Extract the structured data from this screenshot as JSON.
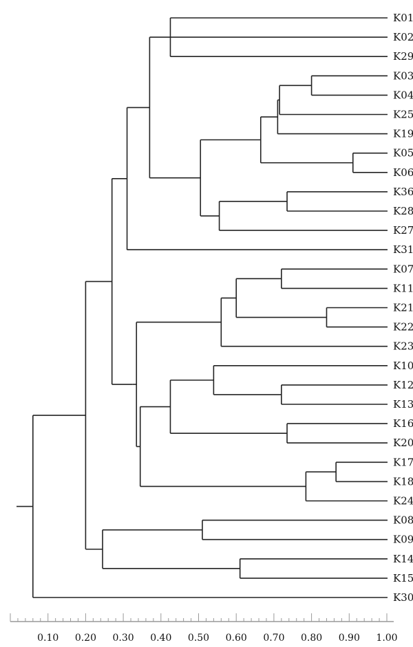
{
  "chart_data": {
    "type": "dendrogram",
    "title": "",
    "xlabel": "",
    "ylabel": "",
    "xlim": [
      0.0,
      1.0
    ],
    "leaves": [
      "K01",
      "K02",
      "K29",
      "K03",
      "K04",
      "K25",
      "K19",
      "K05",
      "K06",
      "K36",
      "K28",
      "K27",
      "K31",
      "K07",
      "K11",
      "K21",
      "K22",
      "K23",
      "K10",
      "K12",
      "K13",
      "K16",
      "K20",
      "K17",
      "K18",
      "K24",
      "K08",
      "K09",
      "K14",
      "K15",
      "K30"
    ],
    "tree": {
      "h": 0.06,
      "c": [
        {
          "h": 0.2,
          "c": [
            {
              "h": 0.27,
              "c": [
                {
                  "h": 0.31,
                  "c": [
                    {
                      "h": 0.37,
                      "c": [
                        {
                          "h": 0.425,
                          "c": [
                            "K01",
                            "K02",
                            "_K29"
                          ]
                        },
                        {
                          "h": 0.505,
                          "c": [
                            {
                              "h": 0.665,
                              "c": [
                                {
                                  "h": 0.71,
                                  "c": [
                                    {
                                      "h": 0.715,
                                      "c": [
                                        {
                                          "h": 0.8,
                                          "c": [
                                            "K03",
                                            "K04"
                                          ]
                                        },
                                        "K25"
                                      ]
                                    },
                                    "K19"
                                  ]
                                },
                                {
                                  "h": 0.91,
                                  "c": [
                                    "K05",
                                    "K06"
                                  ]
                                }
                              ]
                            },
                            {
                              "h": 0.555,
                              "c": [
                                {
                                  "h": 0.735,
                                  "c": [
                                    "K36",
                                    "K28"
                                  ]
                                },
                                "K27"
                              ]
                            }
                          ]
                        }
                      ]
                    },
                    "K31"
                  ]
                },
                {
                  "h": 0.325,
                  "c": [
                    {
                      "h": 0.335,
                      "c": [
                        {
                          "h": 0.56,
                          "c": [
                            {
                              "h": 0.6,
                              "c": [
                                {
                                  "h": 0.72,
                                  "c": [
                                    "K07",
                                    "K11"
                                  ]
                                },
                                {
                                  "h": 0.84,
                                  "c": [
                                    "K21",
                                    "K22"
                                  ]
                                }
                              ]
                            },
                            "K23"
                          ]
                        },
                        {
                          "h": 0.345,
                          "c": [
                            {
                              "h": 0.425,
                              "c": [
                                {
                                  "h": 0.54,
                                  "c": [
                                    "K10",
                                    {
                                      "h": 0.72,
                                      "c": [
                                        "K12",
                                        "K13"
                                      ]
                                    }
                                  ]
                                },
                                {
                                  "h": 0.735,
                                  "c": [
                                    "K16",
                                    "K20"
                                  ]
                                }
                              ]
                            },
                            {
                              "h": 0.785,
                              "c": [
                                {
                                  "h": 0.865,
                                  "c": [
                                    "K17",
                                    "K18"
                                  ]
                                },
                                "K24"
                              ]
                            }
                          ]
                        }
                      ]
                    }
                  ]
                }
              ]
            },
            {
              "h": 0.245,
              "c": [
                {
                  "h": 0.51,
                  "c": [
                    "K08",
                    "K09"
                  ]
                },
                {
                  "h": 0.61,
                  "c": [
                    "K14",
                    "K15"
                  ]
                }
              ]
            }
          ]
        },
        "K30"
      ]
    },
    "x_ticks": [
      0.1,
      0.2,
      0.3,
      0.4,
      0.5,
      0.6,
      0.7,
      0.8,
      0.9,
      1.0
    ],
    "x_tick_labels": [
      "0.10",
      "0.20",
      "0.30",
      "0.40",
      "0.50",
      "0.60",
      "0.70",
      "0.80",
      "0.90",
      "1.00"
    ],
    "grid": false,
    "legend": "none"
  }
}
